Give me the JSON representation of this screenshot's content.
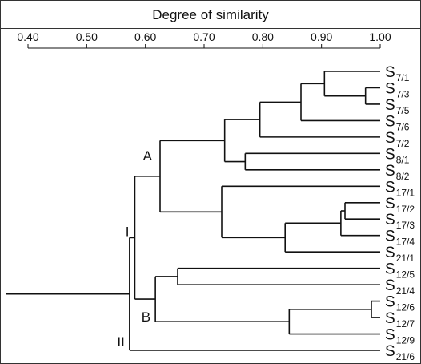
{
  "axis": {
    "title": "Degree of similarity",
    "ticks": [
      {
        "value": 0.4,
        "label": "0.40"
      },
      {
        "value": 0.5,
        "label": "0.50"
      },
      {
        "value": 0.6,
        "label": "0.60"
      },
      {
        "value": 0.7,
        "label": "0.70"
      },
      {
        "value": 0.8,
        "label": "0.80"
      },
      {
        "value": 0.9,
        "label": "0.90"
      },
      {
        "value": 1.0,
        "label": "1.00"
      }
    ],
    "range": [
      0.4,
      1.0
    ]
  },
  "leaves": [
    {
      "id": "l1",
      "main": "S",
      "sub": "7/1"
    },
    {
      "id": "l2",
      "main": "S",
      "sub": "7/3"
    },
    {
      "id": "l3",
      "main": "S",
      "sub": "7/5"
    },
    {
      "id": "l4",
      "main": "S",
      "sub": "7/6"
    },
    {
      "id": "l5",
      "main": "S",
      "sub": "7/2"
    },
    {
      "id": "l6",
      "main": "S",
      "sub": "8/1"
    },
    {
      "id": "l7",
      "main": "S",
      "sub": "8/2"
    },
    {
      "id": "l8",
      "main": "S",
      "sub": "17/1"
    },
    {
      "id": "l9",
      "main": "S",
      "sub": "17/2"
    },
    {
      "id": "l10",
      "main": "S",
      "sub": "17/3"
    },
    {
      "id": "l11",
      "main": "S",
      "sub": "17/4"
    },
    {
      "id": "l12",
      "main": "S",
      "sub": "21/1"
    },
    {
      "id": "l13",
      "main": "S",
      "sub": "12/5"
    },
    {
      "id": "l14",
      "main": "S",
      "sub": "21/4"
    },
    {
      "id": "l15",
      "main": "S",
      "sub": "12/6"
    },
    {
      "id": "l16",
      "main": "S",
      "sub": "12/7"
    },
    {
      "id": "l17",
      "main": "S",
      "sub": "12/9"
    },
    {
      "id": "l18",
      "main": "S",
      "sub": "21/6"
    }
  ],
  "merges": [
    {
      "id": "n1",
      "children": [
        "l2",
        "l3"
      ],
      "similarity": 0.975
    },
    {
      "id": "n2",
      "children": [
        "l1",
        "n1"
      ],
      "similarity": 0.905
    },
    {
      "id": "n3",
      "children": [
        "n2",
        "l4"
      ],
      "similarity": 0.865
    },
    {
      "id": "n4",
      "children": [
        "n3",
        "l5"
      ],
      "similarity": 0.795
    },
    {
      "id": "n5",
      "children": [
        "l6",
        "l7"
      ],
      "similarity": 0.77
    },
    {
      "id": "n6",
      "children": [
        "n4",
        "n5"
      ],
      "similarity": 0.735
    },
    {
      "id": "n7",
      "children": [
        "l9",
        "l10"
      ],
      "similarity": 0.94
    },
    {
      "id": "n8",
      "children": [
        "n7",
        "l11"
      ],
      "similarity": 0.933
    },
    {
      "id": "n9",
      "children": [
        "n8",
        "l12"
      ],
      "similarity": 0.838
    },
    {
      "id": "n10",
      "children": [
        "l8",
        "n9"
      ],
      "similarity": 0.73
    },
    {
      "id": "A",
      "children": [
        "n6",
        "n10"
      ],
      "similarity": 0.625
    },
    {
      "id": "n12",
      "children": [
        "l13",
        "l14"
      ],
      "similarity": 0.655
    },
    {
      "id": "n13",
      "children": [
        "l15",
        "l16"
      ],
      "similarity": 0.985
    },
    {
      "id": "n14",
      "children": [
        "n13",
        "l17"
      ],
      "similarity": 0.845
    },
    {
      "id": "B",
      "children": [
        "n12",
        "n14"
      ],
      "similarity": 0.617
    },
    {
      "id": "I",
      "children": [
        "A",
        "B"
      ],
      "similarity": 0.582
    },
    {
      "id": "root",
      "children": [
        "I",
        "l18"
      ],
      "similarity": 0.573
    }
  ],
  "root_stem_from": 0.4,
  "cluster_labels": [
    {
      "node": "A",
      "text": "A"
    },
    {
      "node": "B",
      "text": "B"
    },
    {
      "node": "I",
      "text": "I"
    },
    {
      "node": "l18",
      "text": "II"
    }
  ]
}
